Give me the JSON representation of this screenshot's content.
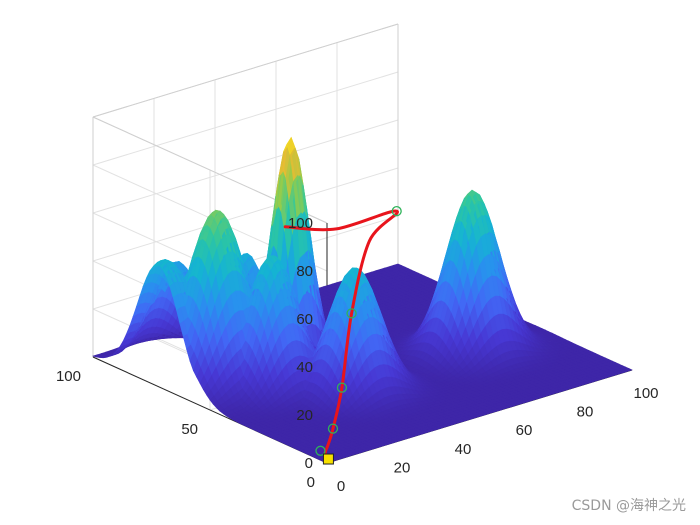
{
  "chart_data": {
    "type": "surface3d",
    "title": "",
    "xlabel": "",
    "ylabel": "",
    "zlabel": "",
    "xlim": [
      0,
      100
    ],
    "ylim": [
      0,
      100
    ],
    "zlim": [
      0,
      100
    ],
    "x_ticks": [
      "0",
      "20",
      "40",
      "60",
      "80",
      "100"
    ],
    "y_ticks": [
      "0",
      "50",
      "100"
    ],
    "z_ticks": [
      "0",
      "20",
      "40",
      "60",
      "80",
      "100"
    ],
    "grid": true,
    "colormap": "parula",
    "peaks": [
      {
        "x": 2,
        "y": 72,
        "height": 52,
        "width": 9
      },
      {
        "x": 13,
        "y": 64,
        "height": 72,
        "width": 8
      },
      {
        "x": 12,
        "y": 80,
        "height": 44,
        "width": 7
      },
      {
        "x": 22,
        "y": 52,
        "height": 55,
        "width": 7
      },
      {
        "x": 24,
        "y": 66,
        "height": 49,
        "width": 6
      },
      {
        "x": 34,
        "y": 60,
        "height": 96,
        "width": 5
      },
      {
        "x": 36,
        "y": 35,
        "height": 52,
        "width": 7
      },
      {
        "x": 77,
        "y": 38,
        "height": 67,
        "width": 7
      }
    ],
    "path": {
      "color": "#e8141c",
      "points": [
        {
          "x": 2,
          "y": 2,
          "z": 0
        },
        {
          "x": 4,
          "y": 6,
          "z": 0
        },
        {
          "x": 8,
          "y": 10,
          "z": 0
        },
        {
          "x": 15,
          "y": 17,
          "z": 1
        },
        {
          "x": 21,
          "y": 21,
          "z": 14
        },
        {
          "x": 28,
          "y": 26,
          "z": 40
        },
        {
          "x": 40,
          "y": 34,
          "z": 62
        },
        {
          "x": 52,
          "y": 38,
          "z": 68
        },
        {
          "x": 46,
          "y": 56,
          "z": 55
        },
        {
          "x": 40,
          "y": 70,
          "z": 52
        }
      ],
      "waypoints": [
        {
          "x": 4,
          "y": 8,
          "z": 0
        },
        {
          "x": 15,
          "y": 17,
          "z": 1
        },
        {
          "x": 21,
          "y": 21,
          "z": 14
        },
        {
          "x": 28,
          "y": 26,
          "z": 40
        },
        {
          "x": 52,
          "y": 38,
          "z": 68
        }
      ],
      "start_marker_color": "#f7e000"
    }
  },
  "watermark": "CSDN @海神之光"
}
